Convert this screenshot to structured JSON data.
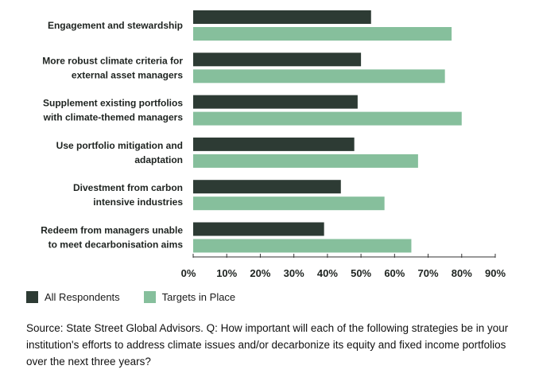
{
  "chart_data": {
    "type": "bar",
    "orientation": "horizontal",
    "categories": [
      [
        "Engagement and stewardship"
      ],
      [
        "More robust climate criteria for",
        "external asset managers"
      ],
      [
        "Supplement existing portfolios",
        "with climate-themed managers"
      ],
      [
        "Use portfolio mitigation and",
        "adaptation"
      ],
      [
        "Divestment from carbon",
        "intensive industries"
      ],
      [
        "Redeem from managers unable",
        "to meet decarbonisation aims"
      ]
    ],
    "series": [
      {
        "name": "All Respondents",
        "color": "#2d3b34",
        "values": [
          53,
          50,
          49,
          48,
          44,
          39
        ]
      },
      {
        "name": "Targets in Place",
        "color": "#86bf9c",
        "values": [
          77,
          75,
          80,
          67,
          57,
          65
        ]
      }
    ],
    "xlim": [
      0,
      90
    ],
    "xticks": [
      "0%",
      "10%",
      "20%",
      "30%",
      "40%",
      "50%",
      "60%",
      "70%",
      "80%",
      "90%"
    ],
    "xtick_values": [
      0,
      10,
      20,
      30,
      40,
      50,
      60,
      70,
      80,
      90
    ],
    "grid": false,
    "legend_position": "bottom-left"
  },
  "source_text": "Source: State Street Global Advisors. Q: How important will each of the following strategies be in your institution's efforts to address climate issues and/or decarbonize its equity and fixed income portfolios over the next three years?"
}
